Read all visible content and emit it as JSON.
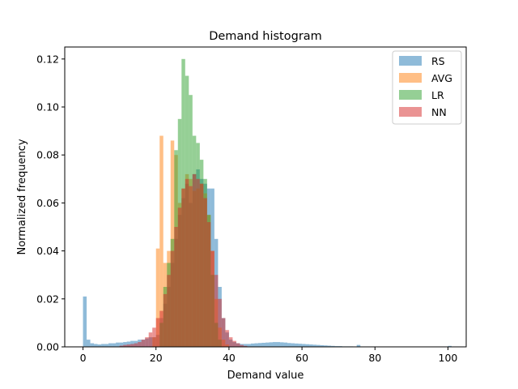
{
  "chart_data": {
    "type": "histogram",
    "title": "Demand histogram",
    "xlabel": "Demand value",
    "ylabel": "Normalized frequency",
    "xlim": [
      -5,
      105
    ],
    "ylim": [
      0,
      0.125
    ],
    "xticks": [
      0,
      20,
      40,
      60,
      80,
      100
    ],
    "xtick_labels": [
      "0",
      "20",
      "40",
      "60",
      "80",
      "100"
    ],
    "yticks": [
      0.0,
      0.02,
      0.04,
      0.06,
      0.08,
      0.1,
      0.12
    ],
    "ytick_labels": [
      "0.00",
      "0.02",
      "0.04",
      "0.06",
      "0.08",
      "0.10",
      "0.12"
    ],
    "grid": false,
    "legend_position": "upper right",
    "bin_width": 1,
    "series": [
      {
        "name": "RS",
        "color": "#1f77b4",
        "bins": [
          [
            0,
            0.021
          ],
          [
            1,
            0.003
          ],
          [
            2,
            0.0015
          ],
          [
            3,
            0.0012
          ],
          [
            4,
            0.001
          ],
          [
            5,
            0.0012
          ],
          [
            6,
            0.0012
          ],
          [
            7,
            0.0015
          ],
          [
            8,
            0.0015
          ],
          [
            9,
            0.0018
          ],
          [
            10,
            0.0018
          ],
          [
            11,
            0.002
          ],
          [
            12,
            0.0022
          ],
          [
            13,
            0.0025
          ],
          [
            14,
            0.0025
          ],
          [
            15,
            0.003
          ],
          [
            16,
            0.003
          ],
          [
            17,
            0.0035
          ],
          [
            18,
            0.004
          ],
          [
            19,
            0.004
          ],
          [
            20,
            0.005
          ],
          [
            21,
            0.012
          ],
          [
            22,
            0.018
          ],
          [
            23,
            0.025
          ],
          [
            24,
            0.035
          ],
          [
            25,
            0.045
          ],
          [
            26,
            0.055
          ],
          [
            27,
            0.062
          ],
          [
            28,
            0.068
          ],
          [
            29,
            0.06
          ],
          [
            30,
            0.072
          ],
          [
            31,
            0.074
          ],
          [
            32,
            0.07
          ],
          [
            33,
            0.068
          ],
          [
            34,
            0.066
          ],
          [
            35,
            0.066
          ],
          [
            36,
            0.045
          ],
          [
            37,
            0.025
          ],
          [
            38,
            0.012
          ],
          [
            39,
            0.006
          ],
          [
            40,
            0.003
          ],
          [
            41,
            0.002
          ],
          [
            42,
            0.0015
          ],
          [
            43,
            0.0012
          ],
          [
            44,
            0.0012
          ],
          [
            45,
            0.0012
          ],
          [
            46,
            0.0014
          ],
          [
            47,
            0.0015
          ],
          [
            48,
            0.0016
          ],
          [
            49,
            0.0017
          ],
          [
            50,
            0.0018
          ],
          [
            51,
            0.0019
          ],
          [
            52,
            0.002
          ],
          [
            53,
            0.002
          ],
          [
            54,
            0.0019
          ],
          [
            55,
            0.0018
          ],
          [
            56,
            0.0016
          ],
          [
            57,
            0.0015
          ],
          [
            58,
            0.0014
          ],
          [
            59,
            0.0013
          ],
          [
            60,
            0.0012
          ],
          [
            61,
            0.0011
          ],
          [
            62,
            0.001
          ],
          [
            63,
            0.0009
          ],
          [
            64,
            0.0008
          ],
          [
            65,
            0.0007
          ],
          [
            66,
            0.0006
          ],
          [
            67,
            0.0005
          ],
          [
            68,
            0.0004
          ],
          [
            69,
            0.0003
          ],
          [
            70,
            0.0003
          ],
          [
            71,
            0.0002
          ],
          [
            72,
            0.0002
          ],
          [
            73,
            0.0002
          ],
          [
            74,
            0.0001
          ],
          [
            75,
            0.0008
          ],
          [
            76,
            0.0001
          ],
          [
            77,
            0.0001
          ],
          [
            78,
            0.0001
          ],
          [
            79,
            0.0001
          ],
          [
            80,
            0.0001
          ],
          [
            85,
            0.0001
          ],
          [
            90,
            0.0001
          ],
          [
            95,
            0.0001
          ],
          [
            100,
            0.0004
          ]
        ]
      },
      {
        "name": "AVG",
        "color": "#ff7f0e",
        "bins": [
          [
            19,
            0.004
          ],
          [
            20,
            0.041
          ],
          [
            21,
            0.088
          ],
          [
            22,
            0.035
          ],
          [
            23,
            0.04
          ],
          [
            24,
            0.086
          ],
          [
            25,
            0.08
          ],
          [
            26,
            0.06
          ],
          [
            27,
            0.066
          ],
          [
            28,
            0.072
          ],
          [
            29,
            0.07
          ],
          [
            30,
            0.065
          ],
          [
            31,
            0.066
          ],
          [
            32,
            0.068
          ],
          [
            33,
            0.064
          ],
          [
            34,
            0.055
          ],
          [
            35,
            0.04
          ],
          [
            36,
            0.02
          ],
          [
            37,
            0.008
          ],
          [
            38,
            0.003
          ],
          [
            39,
            0.001
          ]
        ]
      },
      {
        "name": "LR",
        "color": "#2ca02c",
        "bins": [
          [
            21,
            0.01
          ],
          [
            22,
            0.025
          ],
          [
            23,
            0.035
          ],
          [
            24,
            0.045
          ],
          [
            25,
            0.082
          ],
          [
            26,
            0.095
          ],
          [
            27,
            0.12
          ],
          [
            28,
            0.113
          ],
          [
            29,
            0.105
          ],
          [
            30,
            0.088
          ],
          [
            31,
            0.085
          ],
          [
            32,
            0.078
          ],
          [
            33,
            0.07
          ],
          [
            34,
            0.055
          ],
          [
            35,
            0.03
          ],
          [
            36,
            0.01
          ],
          [
            37,
            0.003
          ]
        ]
      },
      {
        "name": "NN",
        "color": "#d62728",
        "bins": [
          [
            10,
            0.0005
          ],
          [
            11,
            0.0008
          ],
          [
            12,
            0.001
          ],
          [
            13,
            0.0012
          ],
          [
            14,
            0.0015
          ],
          [
            15,
            0.002
          ],
          [
            16,
            0.003
          ],
          [
            17,
            0.004
          ],
          [
            18,
            0.006
          ],
          [
            19,
            0.008
          ],
          [
            20,
            0.012
          ],
          [
            21,
            0.015
          ],
          [
            22,
            0.022
          ],
          [
            23,
            0.03
          ],
          [
            24,
            0.04
          ],
          [
            25,
            0.05
          ],
          [
            26,
            0.058
          ],
          [
            27,
            0.066
          ],
          [
            28,
            0.07
          ],
          [
            29,
            0.067
          ],
          [
            30,
            0.072
          ],
          [
            31,
            0.07
          ],
          [
            32,
            0.068
          ],
          [
            33,
            0.062
          ],
          [
            34,
            0.052
          ],
          [
            35,
            0.04
          ],
          [
            36,
            0.03
          ],
          [
            37,
            0.02
          ],
          [
            38,
            0.012
          ],
          [
            39,
            0.007
          ],
          [
            40,
            0.004
          ],
          [
            41,
            0.0025
          ],
          [
            42,
            0.0015
          ],
          [
            43,
            0.0008
          ],
          [
            44,
            0.0004
          ]
        ]
      }
    ]
  }
}
